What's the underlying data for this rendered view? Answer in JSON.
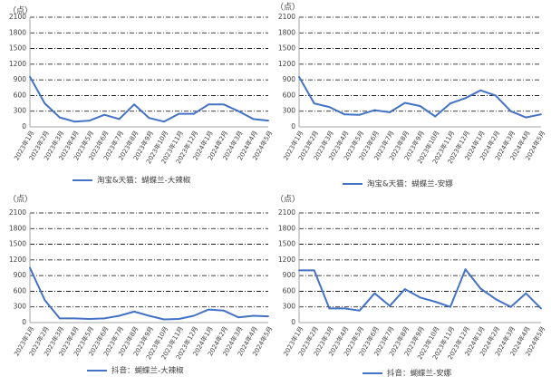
{
  "colors": {
    "line": "#4472C4",
    "grid": "#000000",
    "axis": "#A6A6A6",
    "text": "#404040"
  },
  "chart_data": [
    {
      "type": "line",
      "unit_label": "（点）",
      "categories": [
        "2023年1月",
        "2023年2月",
        "2023年3月",
        "2023年4月",
        "2023年5月",
        "2023年6月",
        "2023年7月",
        "2023年8月",
        "2023年9月",
        "2023年10月",
        "2023年11月",
        "2023年12月",
        "2024年1月",
        "2024年2月",
        "2024年3月",
        "2024年4月",
        "2024年5月"
      ],
      "series": [
        {
          "name": "淘宝&天猫：蝴蝶兰-大辣椒",
          "values": [
            960,
            450,
            180,
            100,
            120,
            230,
            150,
            430,
            170,
            100,
            250,
            250,
            430,
            430,
            300,
            150,
            120
          ]
        }
      ],
      "yticks": [
        0,
        300,
        600,
        900,
        1200,
        1500,
        1800,
        2100
      ],
      "ylim": [
        0,
        2100
      ],
      "grid": true,
      "legend_position": "bottom"
    },
    {
      "type": "line",
      "unit_label": "（点）",
      "categories": [
        "2023年1月",
        "2023年2月",
        "2023年3月",
        "2023年4月",
        "2023年5月",
        "2023年6月",
        "2023年7月",
        "2023年8月",
        "2023年9月",
        "2023年10月",
        "2023年11月",
        "2023年12月",
        "2024年1月",
        "2024年2月",
        "2024年3月",
        "2024年4月",
        "2024年5月"
      ],
      "series": [
        {
          "name": "淘宝&天猫：蝴蝶兰-安娜",
          "values": [
            960,
            450,
            380,
            240,
            230,
            320,
            280,
            460,
            400,
            200,
            450,
            550,
            700,
            600,
            300,
            180,
            240
          ]
        }
      ],
      "yticks": [
        0,
        300,
        600,
        900,
        1200,
        1500,
        1800,
        2100
      ],
      "ylim": [
        0,
        2100
      ],
      "grid": true,
      "legend_position": "bottom"
    },
    {
      "type": "line",
      "unit_label": "（点）",
      "categories": [
        "2023年1月",
        "2023年2月",
        "2023年3月",
        "2023年4月",
        "2023年5月",
        "2023年6月",
        "2023年7月",
        "2023年8月",
        "2023年9月",
        "2023年10月",
        "2023年11月",
        "2023年12月",
        "2024年1月",
        "2024年2月",
        "2024年3月",
        "2024年4月",
        "2024年5月"
      ],
      "series": [
        {
          "name": "抖音：蝴蝶兰-大辣椒",
          "values": [
            1050,
            430,
            80,
            80,
            70,
            80,
            130,
            210,
            130,
            60,
            70,
            130,
            250,
            230,
            100,
            130,
            120
          ]
        }
      ],
      "yticks": [
        0,
        300,
        600,
        900,
        1200,
        1500,
        1800,
        2100
      ],
      "ylim": [
        0,
        2100
      ],
      "grid": true,
      "legend_position": "bottom"
    },
    {
      "type": "line",
      "unit_label": "（点）",
      "categories": [
        "2023年1月",
        "2023年2月",
        "2023年3月",
        "2023年4月",
        "2023年5月",
        "2023年6月",
        "2023年7月",
        "2023年8月",
        "2023年9月",
        "2023年10月",
        "2023年11月",
        "2023年12月",
        "2024年1月",
        "2024年2月",
        "2024年3月",
        "2024年4月",
        "2024年5月"
      ],
      "series": [
        {
          "name": "抖音：蝴蝶兰-安娜",
          "values": [
            1000,
            1000,
            270,
            270,
            230,
            560,
            320,
            640,
            480,
            400,
            300,
            1020,
            650,
            450,
            300,
            560,
            270
          ]
        }
      ],
      "yticks": [
        0,
        300,
        600,
        900,
        1200,
        1500,
        1800,
        2100
      ],
      "ylim": [
        0,
        2100
      ],
      "grid": true,
      "legend_position": "bottom"
    }
  ]
}
